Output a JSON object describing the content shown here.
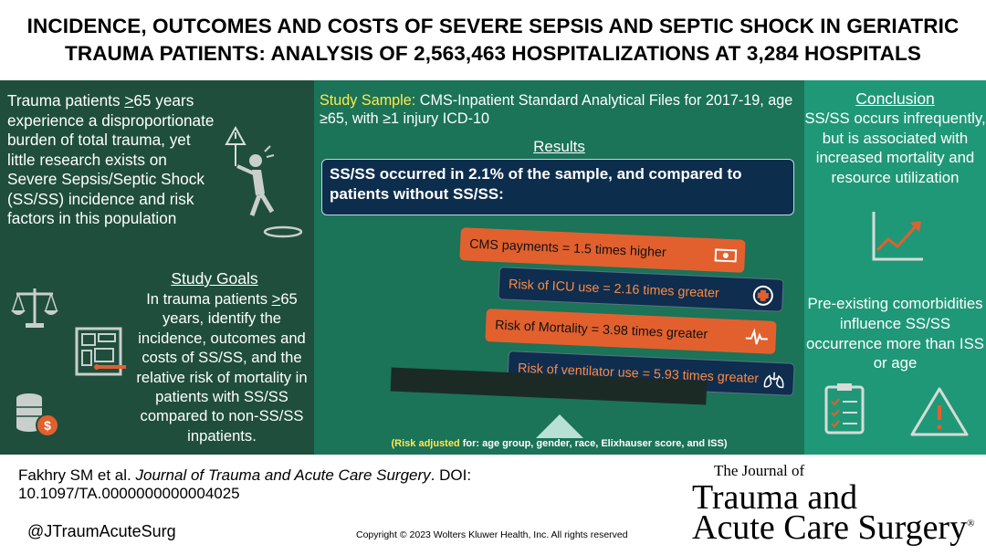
{
  "title": {
    "line1": "INCIDENCE, OUTCOMES AND COSTS OF SEVERE SEPSIS AND SEPTIC SHOCK IN GERIATRIC",
    "line2": "TRAUMA PATIENTS: ANALYSIS OF 2,563,463 HOSPITALIZATIONS AT 3,284 HOSPITALS"
  },
  "left": {
    "intro_pre": "Trauma patients ",
    "intro_ge": ">",
    "intro_post": "65 years experience a disproportionate burden of total trauma, yet little research exists on Severe Sepsis/Septic Shock (SS/SS) incidence and risk factors in this population",
    "goals_heading": "Study Goals",
    "goals_pre": "In trauma patients ",
    "goals_ge": ">",
    "goals_post": "65 years, identify the incidence, outcomes and costs of SS/SS, and the relative risk of mortality in patients with SS/SS compared to non-SS/SS inpatients."
  },
  "middle": {
    "sample_label": "Study Sample:",
    "sample_text": " CMS-Inpatient Standard Analytical Files for 2017-19, age ≥65, with ≥1 injury ICD-10",
    "results_heading": "Results",
    "callout": "SS/SS occurred in 2.1% of the sample, and compared to patients without SS/SS:",
    "bars": [
      "CMS payments = 1.5 times higher",
      "Risk of ICU use = 2.16 times greater",
      "Risk of Mortality = 3.98 times greater",
      "Risk of ventilator use = 5.93 times greater"
    ],
    "footnote_bold": "(Risk adjusted",
    "footnote_rest": " for: age group, gender, race, Elixhauser score, and ISS)"
  },
  "right": {
    "conclusion_heading": "Conclusion",
    "conclusion_text": "SS/SS occurs infrequently, but is associated with increased mortality and resource utilization",
    "preexisting_text": "Pre-existing comorbidities influence SS/SS occurrence more than ISS or age"
  },
  "footer": {
    "citation_pre": "Fakhry SM et al. ",
    "citation_journal": "Journal of Trauma and Acute Care Surgery",
    "citation_post": ". DOI: 10.1097/TA.0000000000004025",
    "handle": "@JTraumAcuteSurg",
    "copyright": "Copyright © 2023  Wolters Kluwer Health, Inc. All rights reserved",
    "journal_small": "The Journal of",
    "journal_line1": "Trauma and",
    "journal_line2": "Acute Care Surgery",
    "journal_reg": "®"
  },
  "icons": [
    "falling-person-icon",
    "justice-scale-icon",
    "blueprint-icon",
    "coins-icon",
    "money-icon",
    "medical-cross-icon",
    "heartbeat-icon",
    "lungs-icon",
    "rising-chart-icon",
    "checklist-icon",
    "warning-icon"
  ],
  "colors": {
    "left_panel": "#1f4e3d",
    "middle_panel": "#1b7358",
    "right_panel": "#1f9878",
    "orange_bar": "#e2602e",
    "navy_bar": "#0f2d4e",
    "highlight_yellow": "#ffe94d"
  }
}
